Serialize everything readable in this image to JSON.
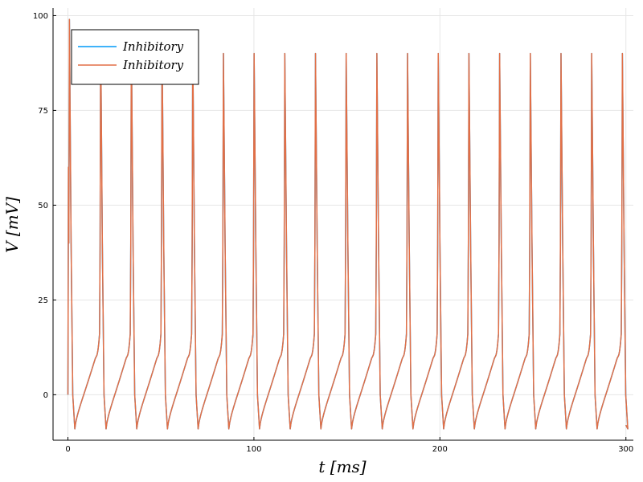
{
  "chart_data": {
    "type": "line",
    "title": "",
    "xlabel": "t [ms]",
    "ylabel": "V [mV]",
    "xlim": [
      -8,
      304
    ],
    "ylim": [
      -12,
      102
    ],
    "xticks": [
      0,
      100,
      200,
      300
    ],
    "yticks": [
      0,
      25,
      50,
      75,
      100
    ],
    "xtick_labels": [
      "0",
      "100",
      "200",
      "300"
    ],
    "ytick_labels": [
      "0",
      "25",
      "50",
      "75",
      "100"
    ],
    "grid": true,
    "legend_position": "top-left",
    "spike_times": [
      0.8,
      17.6,
      34.1,
      50.6,
      67.1,
      83.6,
      100.1,
      116.6,
      133.1,
      149.6,
      166.1,
      182.6,
      199.1,
      215.6,
      232.1,
      248.6,
      265.1,
      281.6,
      298.1
    ],
    "peak_values": [
      99,
      96,
      95,
      94,
      93,
      90,
      90,
      90,
      90,
      90,
      90,
      90,
      90,
      90,
      90,
      90,
      90,
      90,
      90
    ],
    "resting_min": -9,
    "end_value": -8,
    "x_end": 300,
    "series": [
      {
        "name": "Inhibitory",
        "color": "#009af9"
      },
      {
        "name": "Inhibitory",
        "color": "#e26f46"
      }
    ]
  }
}
